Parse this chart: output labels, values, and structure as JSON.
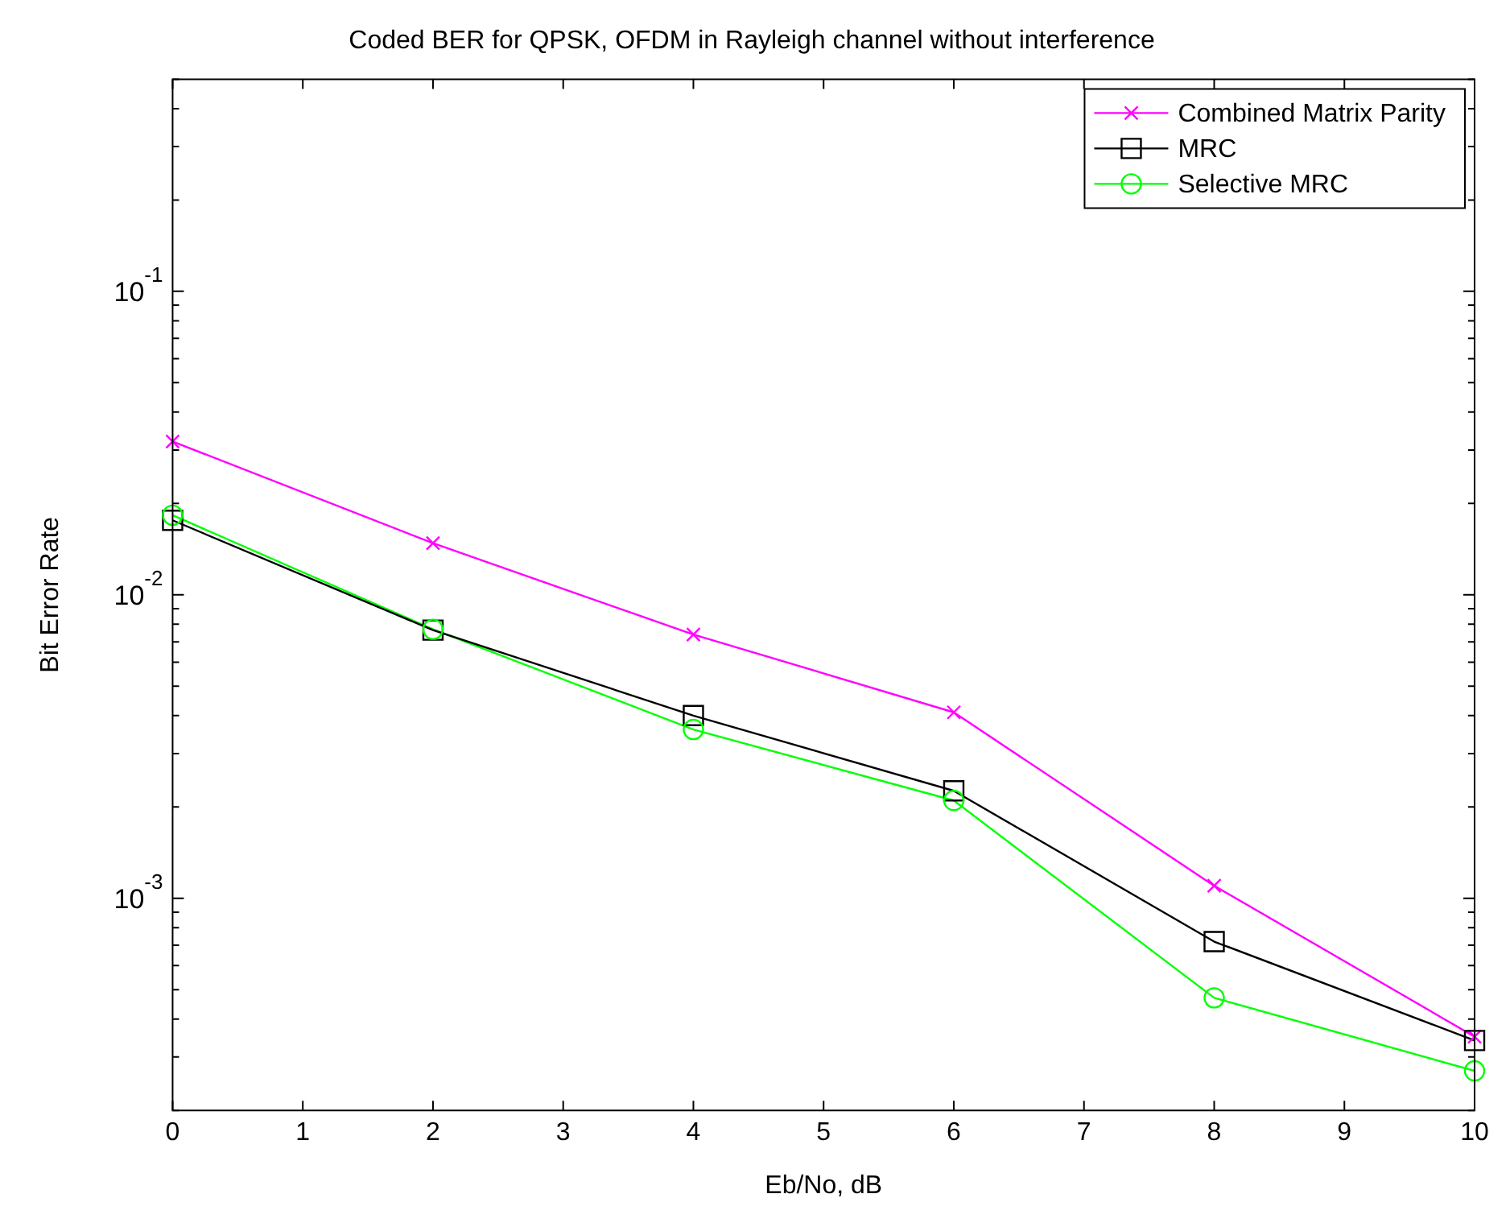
{
  "chart_data": {
    "type": "line",
    "title": "Coded BER for QPSK, OFDM in Rayleigh channel without interference",
    "xlabel": "Eb/No, dB",
    "ylabel": "Bit Error Rate",
    "x": [
      0,
      2,
      4,
      6,
      8,
      10
    ],
    "series": [
      {
        "name": "Combined Matrix Parity",
        "color": "#ff00ff",
        "marker": "cross",
        "values": [
          0.032,
          0.0148,
          0.0074,
          0.0041,
          0.0011,
          0.00035
        ]
      },
      {
        "name": "MRC",
        "color": "#000000",
        "marker": "square",
        "values": [
          0.0176,
          0.00765,
          0.004,
          0.00226,
          0.00072,
          0.00034
        ]
      },
      {
        "name": "Selective MRC",
        "color": "#00ff00",
        "marker": "circle",
        "values": [
          0.0183,
          0.0077,
          0.0036,
          0.0021,
          0.00047,
          0.00027
        ]
      }
    ],
    "log": "y",
    "xlim": [
      0,
      10
    ],
    "xticks": [
      0,
      1,
      2,
      3,
      4,
      5,
      6,
      7,
      8,
      9,
      10
    ],
    "ylim": [
      0.0002,
      0.5
    ],
    "yticks": [
      {
        "value": 0.0002,
        "label": null
      },
      {
        "value": 0.0003,
        "label": null
      },
      {
        "value": 0.0004,
        "label": null
      },
      {
        "value": 0.0005,
        "label": null
      },
      {
        "value": 0.0006,
        "label": null
      },
      {
        "value": 0.0007,
        "label": null
      },
      {
        "value": 0.0008,
        "label": null
      },
      {
        "value": 0.0009,
        "label": null
      },
      {
        "value": 0.001,
        "label": "10$^{-3}$"
      },
      {
        "value": 0.002,
        "label": null
      },
      {
        "value": 0.003,
        "label": null
      },
      {
        "value": 0.004,
        "label": null
      },
      {
        "value": 0.005,
        "label": null
      },
      {
        "value": 0.006,
        "label": null
      },
      {
        "value": 0.007,
        "label": null
      },
      {
        "value": 0.008,
        "label": null
      },
      {
        "value": 0.009,
        "label": null
      },
      {
        "value": 0.01,
        "label": "10$^{-2}$"
      },
      {
        "value": 0.02,
        "label": null
      },
      {
        "value": 0.03,
        "label": null
      },
      {
        "value": 0.04,
        "label": null
      },
      {
        "value": 0.05,
        "label": null
      },
      {
        "value": 0.06,
        "label": null
      },
      {
        "value": 0.07,
        "label": null
      },
      {
        "value": 0.08,
        "label": null
      },
      {
        "value": 0.09,
        "label": null
      },
      {
        "value": 0.1,
        "label": "10$^{-1}$"
      },
      {
        "value": 0.2,
        "label": null
      },
      {
        "value": 0.3,
        "label": null
      },
      {
        "value": 0.4,
        "label": null
      },
      {
        "value": 0.5,
        "label": null
      }
    ],
    "grid": false,
    "legend": "top right",
    "line_style": "solid"
  }
}
